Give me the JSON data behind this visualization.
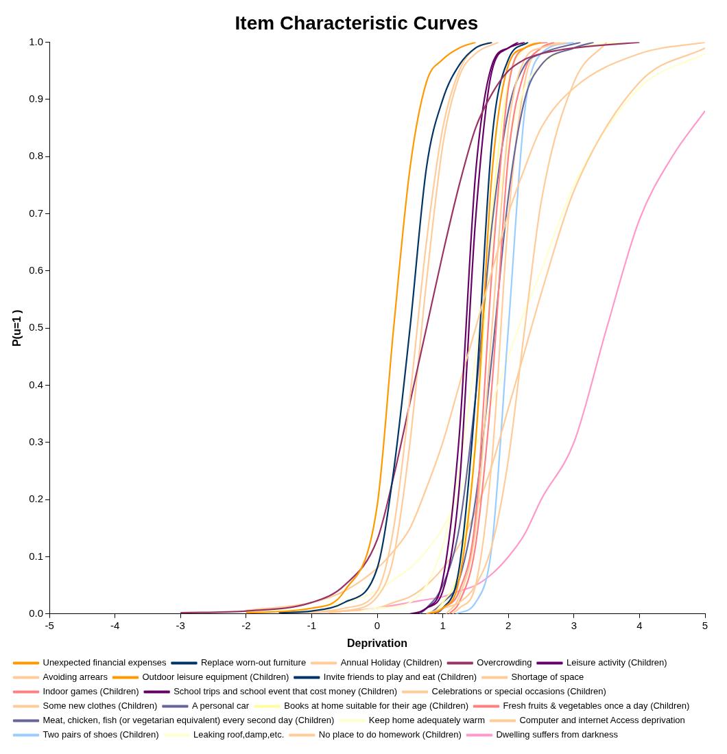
{
  "chart_data": {
    "type": "line",
    "title": "Item Characteristic Curves",
    "xlabel": "Deprivation",
    "ylabel": "P(u=1 )",
    "xlim": [
      -5,
      5
    ],
    "xticks": [
      -5,
      -4,
      -3,
      -2,
      -1,
      0,
      1,
      2,
      3,
      4,
      5
    ],
    "ylim": [
      0,
      1
    ],
    "yticks": [
      {
        "value": 0,
        "label": "0.0"
      },
      0.1,
      0.2,
      0.3,
      0.4,
      0.5,
      0.6,
      0.7,
      0.8,
      0.9,
      {
        "value": 1,
        "label": "1.0"
      }
    ],
    "grid": false,
    "legend": "bottom",
    "marker": "none",
    "line_style": "solid",
    "series": [
      {
        "name": "Unexpected financial expenses",
        "color": "#ff9900",
        "x": [
          -2,
          -1,
          -0.5,
          0,
          0.25,
          0.5,
          0.75,
          1,
          1.25,
          1.5
        ],
        "values": [
          0.002,
          0.01,
          0.04,
          0.19,
          0.5,
          0.78,
          0.93,
          0.97,
          0.99,
          1
        ]
      },
      {
        "name": "Replace worn-out furniture",
        "color": "#003366",
        "x": [
          -1.5,
          -1,
          -0.5,
          0,
          0.25,
          0.5,
          0.75,
          1,
          1.25,
          1.5,
          1.75
        ],
        "values": [
          0.002,
          0.005,
          0.02,
          0.08,
          0.25,
          0.5,
          0.78,
          0.9,
          0.96,
          0.99,
          1
        ]
      },
      {
        "name": "Annual Holiday (Children)",
        "color": "#ffcc99",
        "x": [
          -1,
          -0.5,
          0,
          0.25,
          0.5,
          0.75,
          1,
          1.25,
          1.5,
          1.75
        ],
        "values": [
          0.002,
          0.01,
          0.04,
          0.15,
          0.38,
          0.65,
          0.85,
          0.95,
          0.99,
          1
        ]
      },
      {
        "name": "Overcrowding",
        "color": "#993366",
        "x": [
          -3,
          -2,
          -1,
          -0.5,
          0,
          0.25,
          0.5,
          0.75,
          1,
          1.25,
          1.5,
          1.75,
          2,
          2.25,
          2.5,
          3,
          4
        ],
        "values": [
          0.002,
          0.005,
          0.02,
          0.05,
          0.13,
          0.24,
          0.37,
          0.5,
          0.63,
          0.75,
          0.85,
          0.91,
          0.95,
          0.97,
          0.98,
          0.99,
          1
        ]
      },
      {
        "name": "Leisure activity (Children)",
        "color": "#660066",
        "x": [
          0.5,
          0.75,
          1,
          1.25,
          1.5,
          1.75,
          2,
          2.25
        ],
        "values": [
          0,
          0.01,
          0.06,
          0.31,
          0.77,
          0.96,
          0.99,
          1
        ]
      },
      {
        "name": "Avoiding arrears",
        "color": "#ffcc99",
        "x": [
          -2,
          -1,
          -0.5,
          0,
          0.25,
          0.5,
          0.75,
          1,
          1.25,
          1.5,
          1.75,
          2,
          2.25,
          2.5,
          3,
          4,
          5
        ],
        "values": [
          0.006,
          0.02,
          0.04,
          0.08,
          0.11,
          0.15,
          0.22,
          0.3,
          0.4,
          0.5,
          0.6,
          0.7,
          0.78,
          0.85,
          0.92,
          0.98,
          1
        ]
      },
      {
        "name": "Outdoor leisure equipment (Children)",
        "color": "#ff9900",
        "x": [
          0.75,
          1,
          1.25,
          1.5,
          1.75,
          2,
          2.25,
          2.5
        ],
        "values": [
          0,
          0.01,
          0.06,
          0.3,
          0.77,
          0.96,
          0.99,
          1
        ]
      },
      {
        "name": "Invite friends to play and eat (Children)",
        "color": "#003366",
        "x": [
          0.8,
          1,
          1.25,
          1.5,
          1.75,
          2,
          2.3
        ],
        "values": [
          0,
          0.01,
          0.08,
          0.38,
          0.83,
          0.97,
          1
        ]
      },
      {
        "name": "Shortage of space",
        "color": "#ffcc99",
        "x": [
          0.75,
          1,
          1.25,
          1.5,
          1.75,
          2,
          2.25,
          2.5,
          3,
          3.5
        ],
        "values": [
          0,
          0.01,
          0.02,
          0.05,
          0.12,
          0.27,
          0.5,
          0.72,
          0.93,
          1
        ]
      },
      {
        "name": "Indoor games (Children)",
        "color": "#ff8080",
        "x": [
          0.9,
          1,
          1.25,
          1.5,
          1.75,
          2,
          2.25,
          2.6
        ],
        "values": [
          0,
          0.01,
          0.04,
          0.17,
          0.6,
          0.92,
          0.99,
          1
        ]
      },
      {
        "name": "School trips and school event that cost money (Children)",
        "color": "#660066",
        "x": [
          0.6,
          0.75,
          1,
          1.25,
          1.5,
          1.75,
          2,
          2.15
        ],
        "values": [
          0,
          0.01,
          0.04,
          0.22,
          0.69,
          0.95,
          0.99,
          1
        ]
      },
      {
        "name": "Celebrations or special occasions (Children)",
        "color": "#ffcc99",
        "x": [
          -0.75,
          -0.5,
          0,
          0.25,
          0.5,
          0.75,
          1,
          1.25,
          1.5,
          1.85
        ],
        "values": [
          0.002,
          0.005,
          0.03,
          0.1,
          0.3,
          0.58,
          0.82,
          0.94,
          0.98,
          1
        ]
      },
      {
        "name": "Some new clothes (Children)",
        "color": "#ffcc99",
        "x": [
          1.05,
          1.25,
          1.5,
          1.75,
          2,
          2.25,
          2.5,
          2.9
        ],
        "values": [
          0,
          0.03,
          0.15,
          0.5,
          0.85,
          0.97,
          0.99,
          1
        ]
      },
      {
        "name": "A personal car",
        "color": "#666699",
        "x": [
          0.65,
          0.75,
          1,
          1.25,
          1.5,
          1.75,
          2,
          2.25,
          2.5,
          3.1
        ],
        "values": [
          0,
          0.01,
          0.05,
          0.15,
          0.38,
          0.68,
          0.88,
          0.96,
          0.98,
          1
        ]
      },
      {
        "name": "Books at home suitable for their age (Children)",
        "color": "#ffff99",
        "x": [
          0.85,
          1,
          1.25,
          1.5,
          1.75,
          2,
          2.25,
          2.4
        ],
        "values": [
          0,
          0.02,
          0.08,
          0.3,
          0.7,
          0.93,
          0.99,
          1
        ]
      },
      {
        "name": "Fresh fruits & vegetables once a day (Children)",
        "color": "#ff8080",
        "x": [
          1.1,
          1.25,
          1.5,
          1.75,
          2,
          2.25,
          2.5,
          2.7
        ],
        "values": [
          0,
          0.02,
          0.12,
          0.4,
          0.8,
          0.95,
          0.99,
          1
        ]
      },
      {
        "name": "Meat, chicken, fish (or vegetarian equivalent) every second day (Children)",
        "color": "#666699",
        "x": [
          0.8,
          1,
          1.25,
          1.5,
          1.75,
          2,
          2.25,
          2.5,
          3,
          3.3
        ],
        "values": [
          0,
          0.02,
          0.06,
          0.2,
          0.45,
          0.73,
          0.9,
          0.96,
          0.99,
          1
        ]
      },
      {
        "name": "Keep home adequately warm",
        "color": "#ffffcc",
        "x": [
          -0.25,
          0,
          0.25,
          0.5,
          0.75,
          1,
          1.25,
          1.5,
          1.75,
          2,
          2.25,
          2.5,
          3,
          3.75
        ],
        "values": [
          0.005,
          0.01,
          0.012,
          0.02,
          0.05,
          0.12,
          0.25,
          0.45,
          0.65,
          0.82,
          0.92,
          0.96,
          0.99,
          1
        ]
      },
      {
        "name": "Computer and internet Access deprivation",
        "color": "#ffcc99",
        "x": [
          -1.5,
          -0.5,
          0,
          0.25,
          0.5,
          0.75,
          1,
          1.25,
          1.5,
          1.75,
          2,
          2.25,
          2.5,
          3,
          4,
          5
        ],
        "values": [
          0.002,
          0.005,
          0.01,
          0.02,
          0.03,
          0.05,
          0.08,
          0.12,
          0.18,
          0.26,
          0.36,
          0.46,
          0.56,
          0.74,
          0.93,
          0.99
        ]
      },
      {
        "name": "Two pairs of shoes (Children)",
        "color": "#99ccff",
        "x": [
          1.2,
          1.5,
          1.75,
          2,
          2.25,
          2.5,
          3
        ],
        "values": [
          0,
          0.02,
          0.12,
          0.5,
          0.88,
          0.98,
          1
        ]
      },
      {
        "name": "Leaking roof,damp,etc.",
        "color": "#ffffcc",
        "x": [
          -2,
          -1,
          -0.5,
          0,
          0.25,
          0.5,
          0.75,
          1,
          1.25,
          1.5,
          1.75,
          2,
          2.25,
          2.5,
          3,
          4,
          5
        ],
        "values": [
          0.004,
          0.01,
          0.02,
          0.04,
          0.06,
          0.08,
          0.11,
          0.15,
          0.21,
          0.29,
          0.37,
          0.45,
          0.53,
          0.6,
          0.75,
          0.92,
          0.98
        ]
      },
      {
        "name": "No place to do homework (Children)",
        "color": "#ffcc99",
        "x": [
          1.15,
          1.25,
          1.5,
          1.75,
          2,
          2.25,
          2.5,
          2.8
        ],
        "values": [
          0,
          0.01,
          0.05,
          0.27,
          0.69,
          0.93,
          0.99,
          1
        ]
      },
      {
        "name": "Dwelling suffers from darkness",
        "color": "#ff99cc",
        "x": [
          -1,
          -0.5,
          0,
          0.25,
          0.5,
          0.75,
          1,
          1.25,
          1.5,
          1.75,
          2,
          2.25,
          2.5,
          3,
          3.5,
          4,
          4.5,
          5
        ],
        "values": [
          0.003,
          0.005,
          0.01,
          0.015,
          0.02,
          0.025,
          0.03,
          0.04,
          0.05,
          0.07,
          0.1,
          0.14,
          0.2,
          0.3,
          0.5,
          0.69,
          0.8,
          0.88
        ]
      }
    ]
  }
}
